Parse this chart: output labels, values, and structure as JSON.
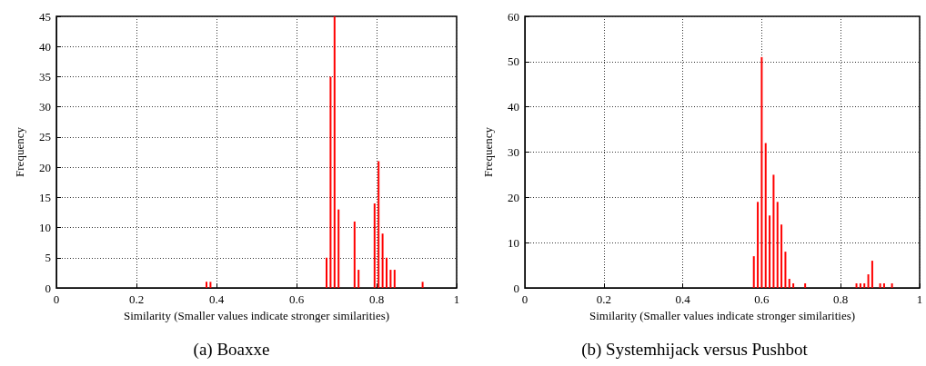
{
  "chart_data": [
    {
      "type": "bar",
      "title": "(a) Boaxxe",
      "xlabel": "Similarity (Smaller values indicate stronger similarities)",
      "ylabel": "Frequency",
      "x": [
        0.375,
        0.385,
        0.675,
        0.685,
        0.695,
        0.705,
        0.745,
        0.755,
        0.795,
        0.805,
        0.815,
        0.825,
        0.835,
        0.845,
        0.915
      ],
      "values": [
        1,
        1,
        5,
        35,
        45,
        13,
        11,
        3,
        14,
        21,
        9,
        5,
        3,
        3,
        1
      ],
      "color": "#ff0000",
      "xlim": [
        0,
        1
      ],
      "xticks": [
        0,
        0.2,
        0.4,
        0.6,
        0.8,
        1
      ],
      "ylim": [
        0,
        45
      ],
      "yticks": [
        0,
        5,
        10,
        15,
        20,
        25,
        30,
        35,
        40,
        45
      ],
      "grid": true
    },
    {
      "type": "bar",
      "title": "(b) Systemhijack versus Pushbot",
      "xlabel": "Similarity (Smaller values indicate stronger similarities)",
      "ylabel": "Frequency",
      "x": [
        0.58,
        0.59,
        0.6,
        0.61,
        0.62,
        0.63,
        0.64,
        0.65,
        0.66,
        0.67,
        0.68,
        0.71,
        0.84,
        0.85,
        0.86,
        0.87,
        0.88,
        0.9,
        0.91,
        0.93
      ],
      "values": [
        7,
        19,
        51,
        32,
        16,
        25,
        19,
        14,
        8,
        2,
        1,
        1,
        1,
        1,
        1,
        3,
        6,
        1,
        1,
        1
      ],
      "color": "#ff0000",
      "xlim": [
        0,
        1
      ],
      "xticks": [
        0,
        0.2,
        0.4,
        0.6,
        0.8,
        1
      ],
      "ylim": [
        0,
        60
      ],
      "yticks": [
        0,
        10,
        20,
        30,
        40,
        50,
        60
      ],
      "grid": true
    }
  ]
}
